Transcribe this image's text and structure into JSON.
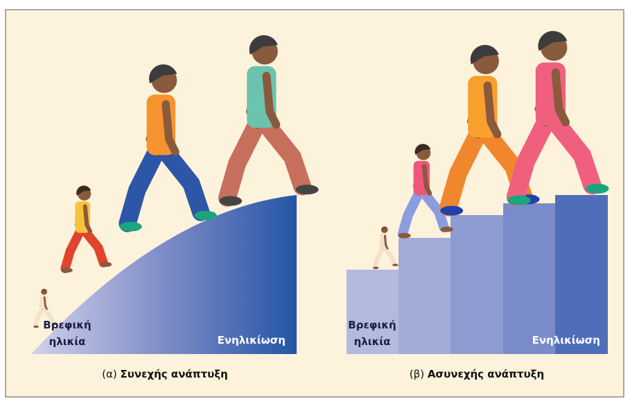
{
  "panels": [
    {
      "start_label": [
        "Βρεφική",
        "ηλικία"
      ],
      "end_label": "Ενηλικίωση",
      "caption_prefix": "(α)",
      "caption": "Συνεχής ανάπτυξη"
    },
    {
      "start_label": [
        "Βρεφική",
        "ηλικία"
      ],
      "end_label": "Ενηλικίωση",
      "caption_prefix": "(β)",
      "caption": "Ασυνεχής ανάπτυξη"
    }
  ]
}
